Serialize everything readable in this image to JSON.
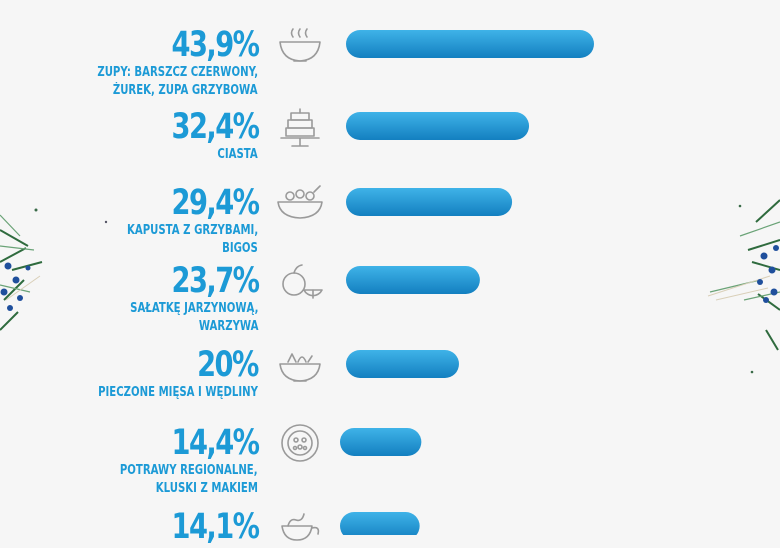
{
  "colors": {
    "accent": "#1c9ad6",
    "bar_light": "#3fb3e8",
    "bar_dark": "#137fc0",
    "icon_stroke": "#9a9a9a",
    "background": "#f6f6f6",
    "pine": "#2f6b3e",
    "berry": "#1f4f9c"
  },
  "chart_data": {
    "type": "bar",
    "orientation": "horizontal",
    "categories": [
      [
        "ZUPY: BARSZCZ CZERWONY,",
        "ŻUREK, ZUPA GRZYBOWA"
      ],
      [
        "CIASTA"
      ],
      [
        "KAPUSTA Z GRZYBAMI,",
        "BIGOS"
      ],
      [
        "SAŁATKĘ JARZYNOWĄ,",
        "WARZYWA"
      ],
      [
        "PIECZONE MIĘSA I WĘDLINY"
      ],
      [
        "POTRAWY REGIONALNE,",
        "KLUSKI Z MAKIEM"
      ],
      [
        ""
      ]
    ],
    "value_labels": [
      "43,9%",
      "32,4%",
      "29,4%",
      "23,7%",
      "20%",
      "14,4%",
      "14,1%"
    ],
    "values": [
      43.9,
      32.4,
      29.4,
      23.7,
      20.0,
      14.4,
      14.1
    ],
    "icons": [
      "soup-bowl-icon",
      "layer-cake-icon",
      "salad-bowl-icon",
      "fruit-icon",
      "mixed-bowl-icon",
      "regional-plate-icon",
      "noodles-icon"
    ],
    "xlim": [
      0,
      43.9
    ],
    "grid": false,
    "legend": "none"
  }
}
